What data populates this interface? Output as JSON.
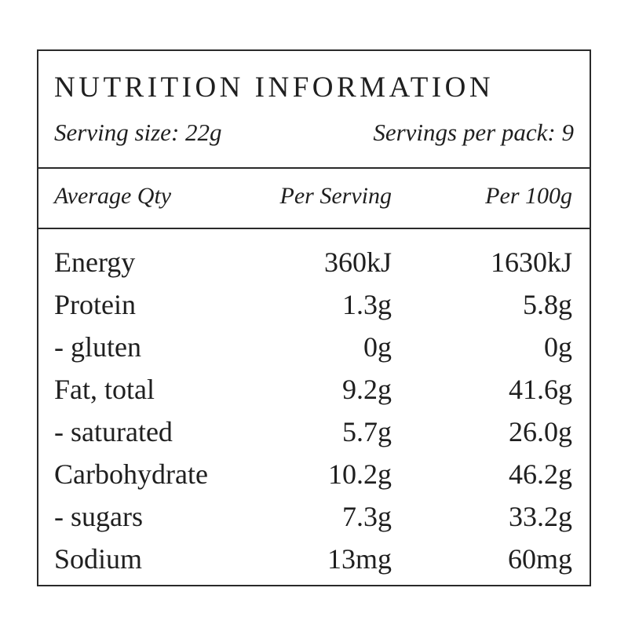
{
  "header": {
    "title": "NUTRITION INFORMATION",
    "serving_size": "Serving size: 22g",
    "servings_per_pack": "Servings per pack: 9"
  },
  "columns": {
    "nutrient": "Average Qty",
    "per_serving": "Per Serving",
    "per_100g": "Per 100g"
  },
  "rows": [
    {
      "name": "Energy",
      "per_serving": "360kJ",
      "per_100g": "1630kJ"
    },
    {
      "name": "Protein",
      "per_serving": "1.3g",
      "per_100g": "5.8g"
    },
    {
      "name": "- gluten",
      "per_serving": "0g",
      "per_100g": "0g"
    },
    {
      "name": "Fat, total",
      "per_serving": "9.2g",
      "per_100g": "41.6g"
    },
    {
      "name": "- saturated",
      "per_serving": "5.7g",
      "per_100g": "26.0g"
    },
    {
      "name": "Carbohydrate",
      "per_serving": "10.2g",
      "per_100g": "46.2g"
    },
    {
      "name": "- sugars",
      "per_serving": "7.3g",
      "per_100g": "33.2g"
    },
    {
      "name": "Sodium",
      "per_serving": "13mg",
      "per_100g": "60mg"
    }
  ],
  "colors": {
    "text": "#1f1f1f",
    "border": "#2a2a2a",
    "background": "#ffffff"
  }
}
